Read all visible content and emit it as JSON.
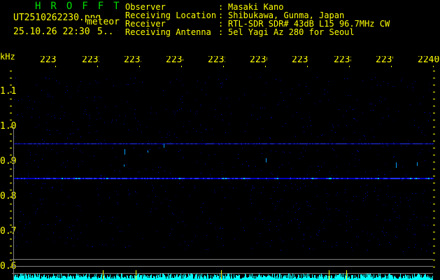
{
  "header": {
    "app_title": "HROFFT",
    "filename": "UT2510262230.png",
    "mode": "meteor",
    "datetime": "25.10.26 22:30",
    "extra": "5..",
    "info": [
      {
        "label": "Observer",
        "value": "Masaki Kano"
      },
      {
        "label": "Receiving Location",
        "value": "Shibukawa, Gunma, Japan"
      },
      {
        "label": "Receiver",
        "value": "RTL-SDR SDR# 43dB L15 96.7MHz CW"
      },
      {
        "label": "Receiving Antenna",
        "value": "5el Yagi Az 280 for Seoul"
      }
    ]
  },
  "axes": {
    "y_unit": "kHz",
    "y_ticks": [
      "1.1",
      "1.0",
      "0.9",
      "0.8",
      "0.7",
      "0.6"
    ],
    "x_ticks": [
      "2231",
      "2232",
      "2233",
      "2234",
      "2235",
      "2236",
      "2237",
      "2238",
      "2239",
      "2240"
    ]
  },
  "colors": {
    "text": "#ffff00",
    "title": "#00e000",
    "signal": "#0000ff",
    "spectrum": "#00ffff",
    "grid": "#808080"
  },
  "signal_bands_khz": [
    0.855,
    0.953
  ]
}
